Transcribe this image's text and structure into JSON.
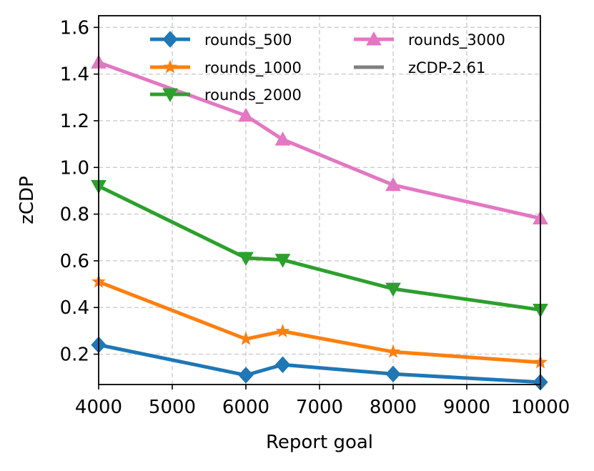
{
  "chart_data": {
    "type": "line",
    "title": "",
    "xlabel": "Report goal",
    "ylabel": "zCDP",
    "xlim": [
      4000,
      10000
    ],
    "ylim": [
      0.07,
      1.65
    ],
    "x_ticks": [
      4000,
      5000,
      6000,
      7000,
      8000,
      9000,
      10000
    ],
    "y_ticks": [
      0.2,
      0.4,
      0.6,
      0.8,
      1.0,
      1.2,
      1.4,
      1.6
    ],
    "grid": true,
    "legend_placement": "top",
    "x": [
      4000,
      6000,
      6500,
      8000,
      10000
    ],
    "series": [
      {
        "name": "rounds_500",
        "color": "#1f77b4",
        "marker": "diamond",
        "values": [
          0.24,
          0.11,
          0.155,
          0.115,
          0.08
        ]
      },
      {
        "name": "rounds_1000",
        "color": "#ff7f0e",
        "marker": "star",
        "values": [
          0.51,
          0.265,
          0.298,
          0.21,
          0.165
        ]
      },
      {
        "name": "rounds_2000",
        "color": "#2ca02c",
        "marker": "triangle-down",
        "values": [
          0.92,
          0.612,
          0.604,
          0.48,
          0.39
        ]
      },
      {
        "name": "rounds_3000",
        "color": "#e377c2",
        "marker": "triangle-up",
        "values": [
          1.45,
          1.222,
          1.12,
          0.925,
          0.782
        ]
      }
    ],
    "reference": {
      "name": "zCDP-2.61",
      "color": "#808080",
      "value": 2.61
    }
  }
}
